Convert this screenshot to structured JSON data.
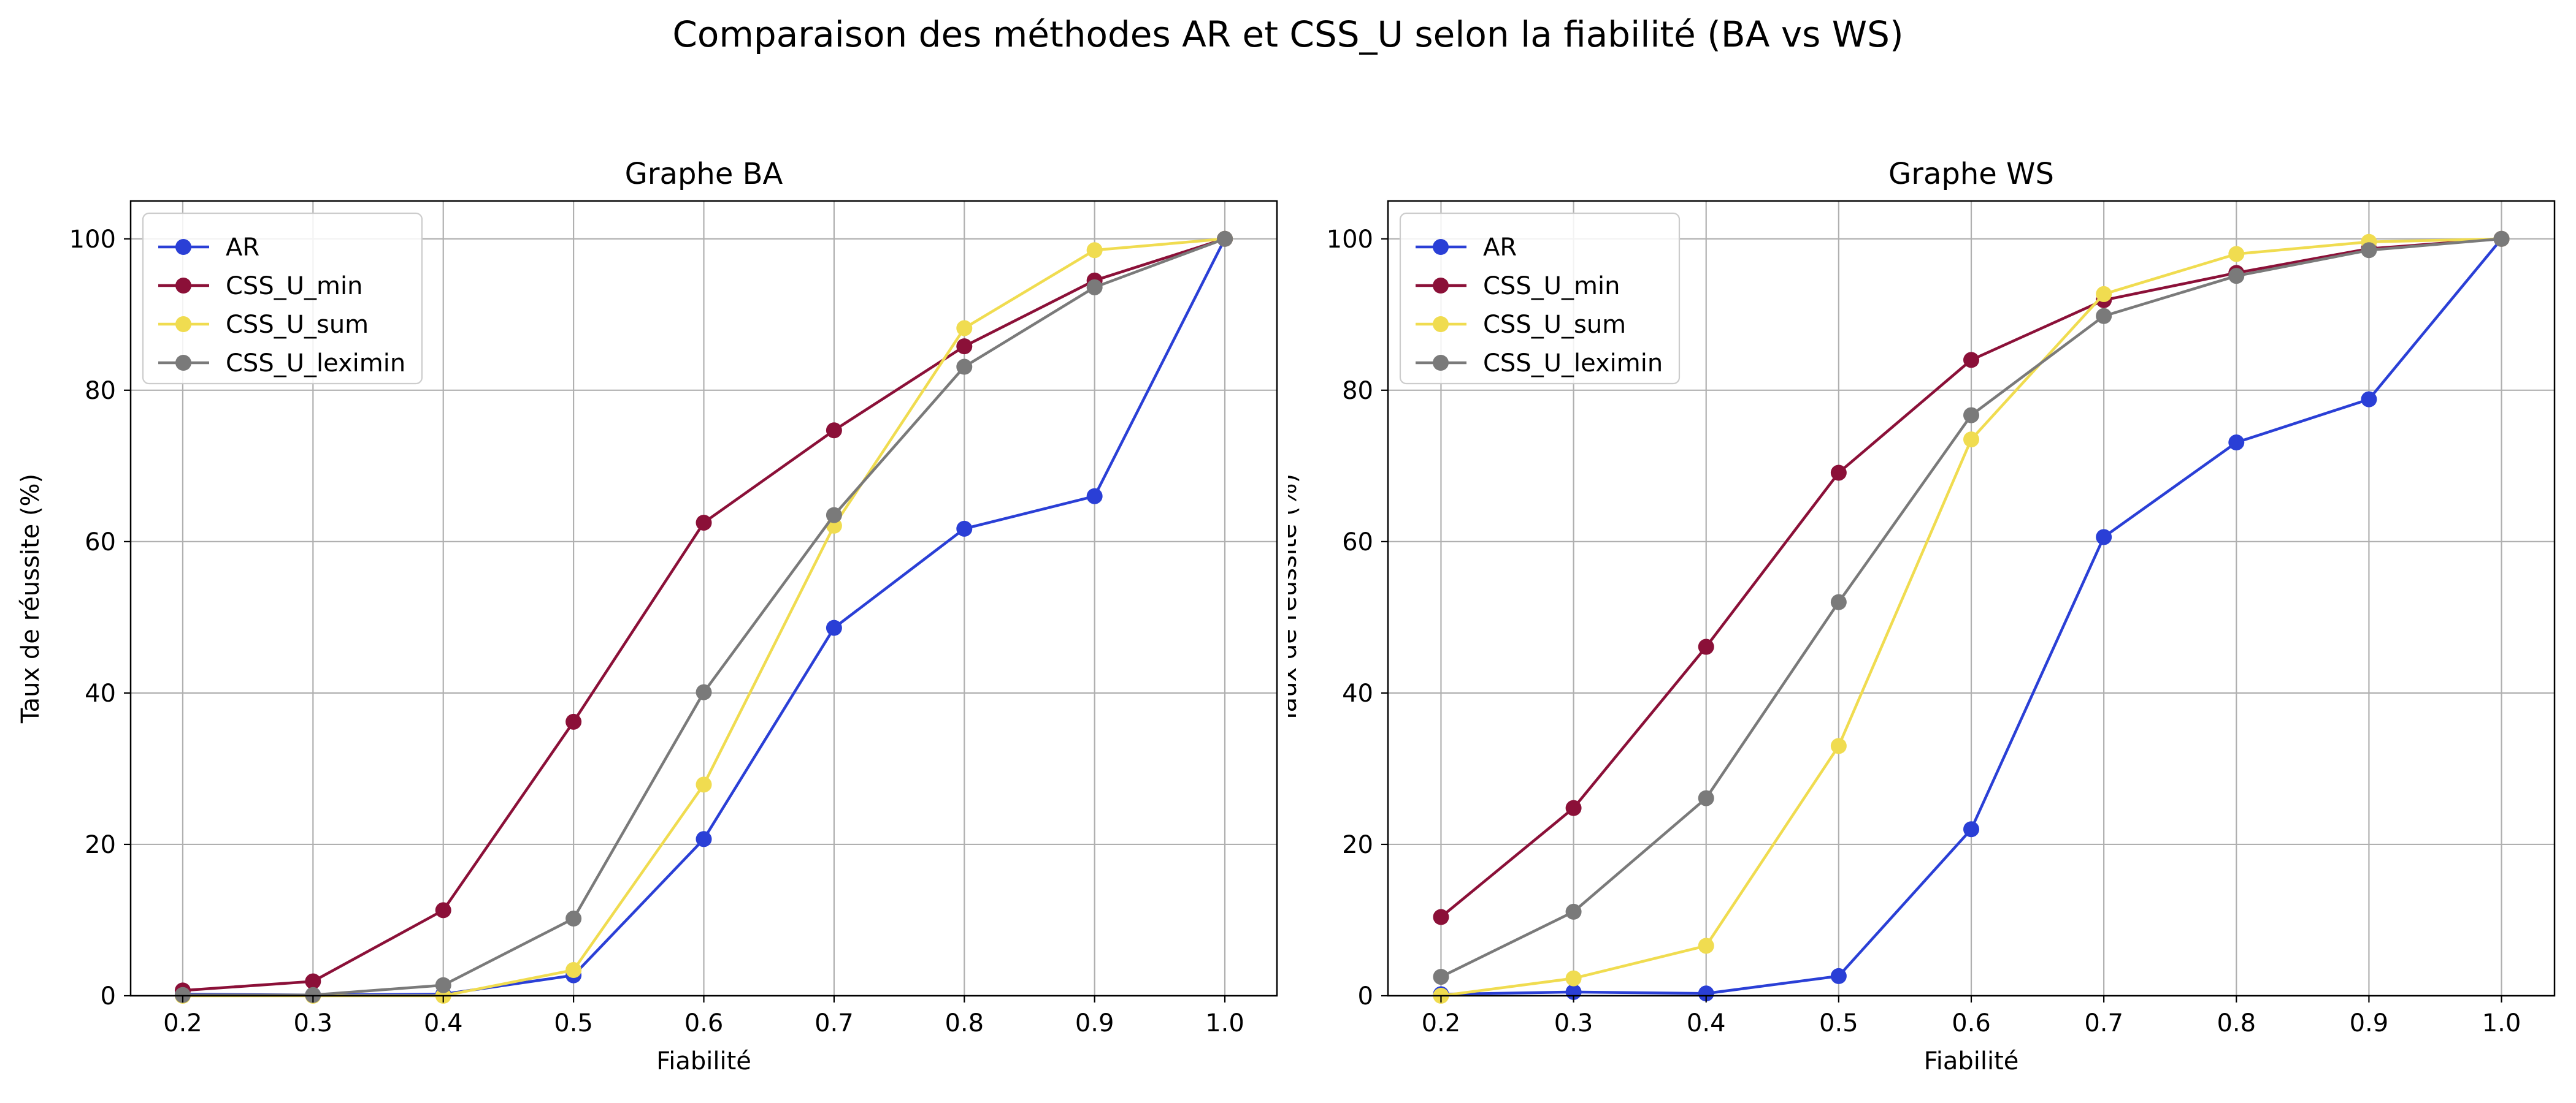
{
  "figure": {
    "title": "Comparaison des méthodes AR et CSS_U selon la fiabilité (BA vs WS)"
  },
  "colors": {
    "AR": "#2a3fd6",
    "CSS_U_min": "#8b1038",
    "CSS_U_sum": "#f0dc50",
    "CSS_U_leximin": "#7a7a7a",
    "grid": "#b0b0b0"
  },
  "chart_data": [
    {
      "type": "line",
      "title": "Graphe BA",
      "xlabel": "Fiabilité",
      "ylabel": "Taux de réussite (%)",
      "x": [
        0.2,
        0.3,
        0.4,
        0.5,
        0.6,
        0.7,
        0.8,
        0.9,
        1.0
      ],
      "xtick_labels": [
        "0.2",
        "0.3",
        "0.4",
        "0.5",
        "0.6",
        "0.7",
        "0.8",
        "0.9",
        "1.0"
      ],
      "yticks": [
        0,
        20,
        40,
        60,
        80,
        100
      ],
      "xlim": [
        0.16,
        1.04
      ],
      "ylim": [
        0,
        105
      ],
      "grid": true,
      "legend": "upper left",
      "series": [
        {
          "name": "AR",
          "color": "#2a3fd6",
          "values": [
            0.2,
            0.1,
            0.2,
            2.7,
            20.7,
            48.6,
            61.7,
            66.0,
            100
          ]
        },
        {
          "name": "CSS_U_min",
          "color": "#8b1038",
          "values": [
            0.7,
            1.9,
            11.3,
            36.2,
            62.5,
            74.7,
            85.8,
            94.5,
            100
          ]
        },
        {
          "name": "CSS_U_sum",
          "color": "#f0dc50",
          "values": [
            0.0,
            0.0,
            0.0,
            3.4,
            27.9,
            62.1,
            88.2,
            98.5,
            100
          ]
        },
        {
          "name": "CSS_U_leximin",
          "color": "#7a7a7a",
          "values": [
            0.1,
            0.1,
            1.4,
            10.2,
            40.1,
            63.5,
            83.1,
            93.6,
            100
          ]
        }
      ]
    },
    {
      "type": "line",
      "title": "Graphe WS",
      "xlabel": "Fiabilité",
      "ylabel": "Taux de réussite (%)",
      "x": [
        0.2,
        0.3,
        0.4,
        0.5,
        0.6,
        0.7,
        0.8,
        0.9,
        1.0
      ],
      "xtick_labels": [
        "0.2",
        "0.3",
        "0.4",
        "0.5",
        "0.6",
        "0.7",
        "0.8",
        "0.9",
        "1.0"
      ],
      "yticks": [
        0,
        20,
        40,
        60,
        80,
        100
      ],
      "xlim": [
        0.16,
        1.04
      ],
      "ylim": [
        0,
        105
      ],
      "grid": true,
      "legend": "upper left",
      "series": [
        {
          "name": "AR",
          "color": "#2a3fd6",
          "values": [
            0.2,
            0.5,
            0.3,
            2.6,
            22.0,
            60.6,
            73.1,
            78.8,
            100
          ]
        },
        {
          "name": "CSS_U_min",
          "color": "#8b1038",
          "values": [
            10.4,
            24.8,
            46.1,
            69.1,
            84.0,
            91.9,
            95.5,
            98.7,
            100
          ]
        },
        {
          "name": "CSS_U_sum",
          "color": "#f0dc50",
          "values": [
            0.0,
            2.3,
            6.6,
            33.0,
            73.5,
            92.7,
            98.0,
            99.6,
            100
          ]
        },
        {
          "name": "CSS_U_leximin",
          "color": "#7a7a7a",
          "values": [
            2.5,
            11.1,
            26.1,
            52.0,
            76.7,
            89.8,
            95.1,
            98.5,
            100
          ]
        }
      ]
    }
  ]
}
